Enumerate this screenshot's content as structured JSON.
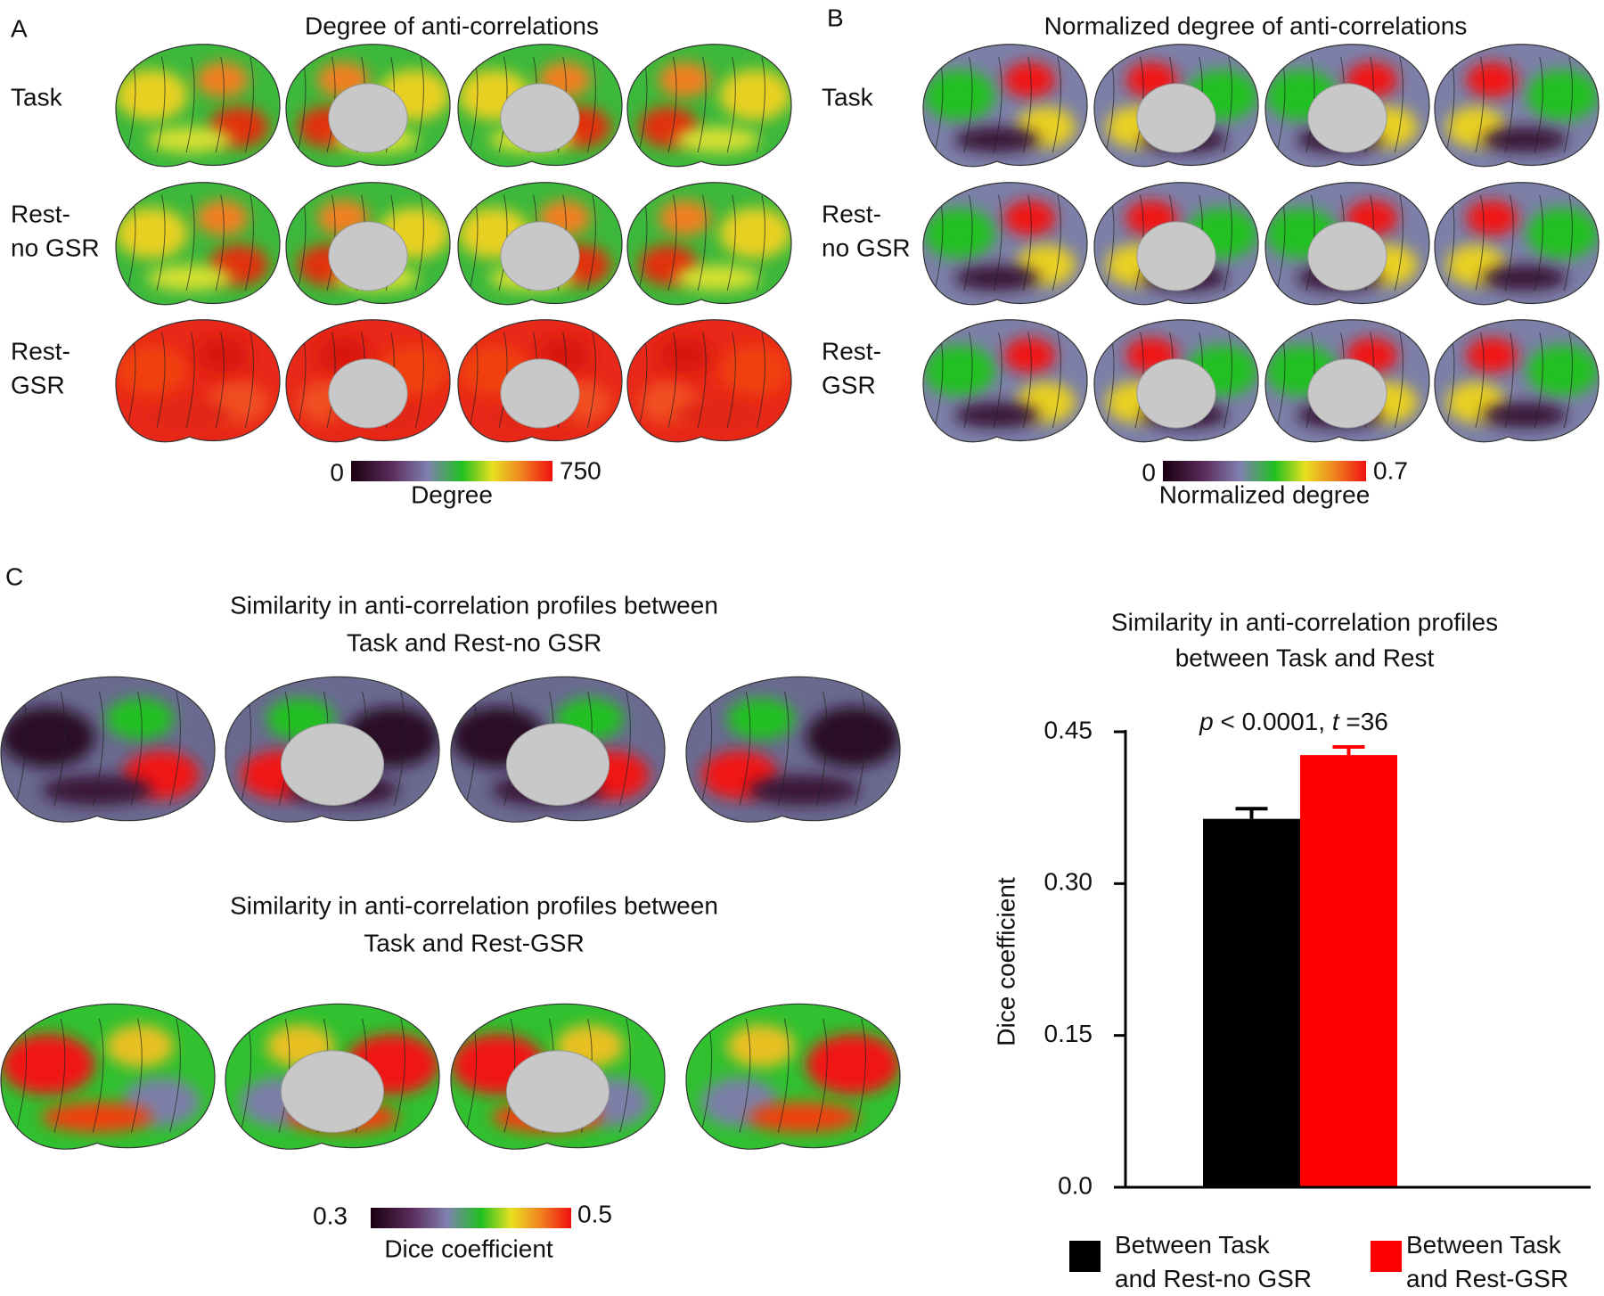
{
  "panel_a": {
    "letter": "A",
    "title": "Degree of anti-correlations",
    "rows": [
      [
        "Task"
      ],
      [
        "Rest-",
        "no GSR"
      ],
      [
        "Rest-",
        "GSR"
      ]
    ],
    "colorbar": {
      "min": 0,
      "max": 750,
      "label": "Degree"
    }
  },
  "panel_b": {
    "letter": "B",
    "title": "Normalized degree of anti-correlations",
    "rows": [
      [
        "Task"
      ],
      [
        "Rest-",
        "no GSR"
      ],
      [
        "Rest-",
        "GSR"
      ]
    ],
    "colorbar": {
      "min": 0,
      "max": 0.7,
      "label": "Normalized degree"
    }
  },
  "panel_c": {
    "letter": "C",
    "maps": [
      {
        "title": [
          "Similarity in anti-correlation profiles between",
          "Task and Rest-no GSR"
        ]
      },
      {
        "title": [
          "Similarity in anti-correlation profiles between",
          "Task and Rest-GSR"
        ]
      }
    ],
    "colorbar": {
      "min": 0.3,
      "max": 0.5,
      "label": "Dice coefficient"
    }
  },
  "chart_data": {
    "type": "bar",
    "title": [
      "Similarity in anti-correlation profiles",
      "between Task and Rest"
    ],
    "annotation": [
      {
        "text": "p",
        "italic": true
      },
      {
        "text": " < 0.0001, ",
        "italic": false
      },
      {
        "text": "t",
        "italic": true
      },
      {
        "text": " =36",
        "italic": false
      }
    ],
    "y_label": "Dice coefficient",
    "ylim": [
      0,
      0.45
    ],
    "yticks": [
      {
        "value": 0,
        "label": "0.0"
      },
      0.15,
      {
        "value": 0.3,
        "label": "0.30"
      },
      0.45
    ],
    "series": [
      {
        "name": "Between Task and Rest-no GSR",
        "color": "#000000",
        "values": [
          0.364
        ],
        "errors": [
          0.01
        ]
      },
      {
        "name": "Between Task and Rest-GSR",
        "color": "#ff0000",
        "values": [
          0.427
        ],
        "errors": [
          0.008
        ]
      }
    ],
    "legend": "bottom"
  }
}
